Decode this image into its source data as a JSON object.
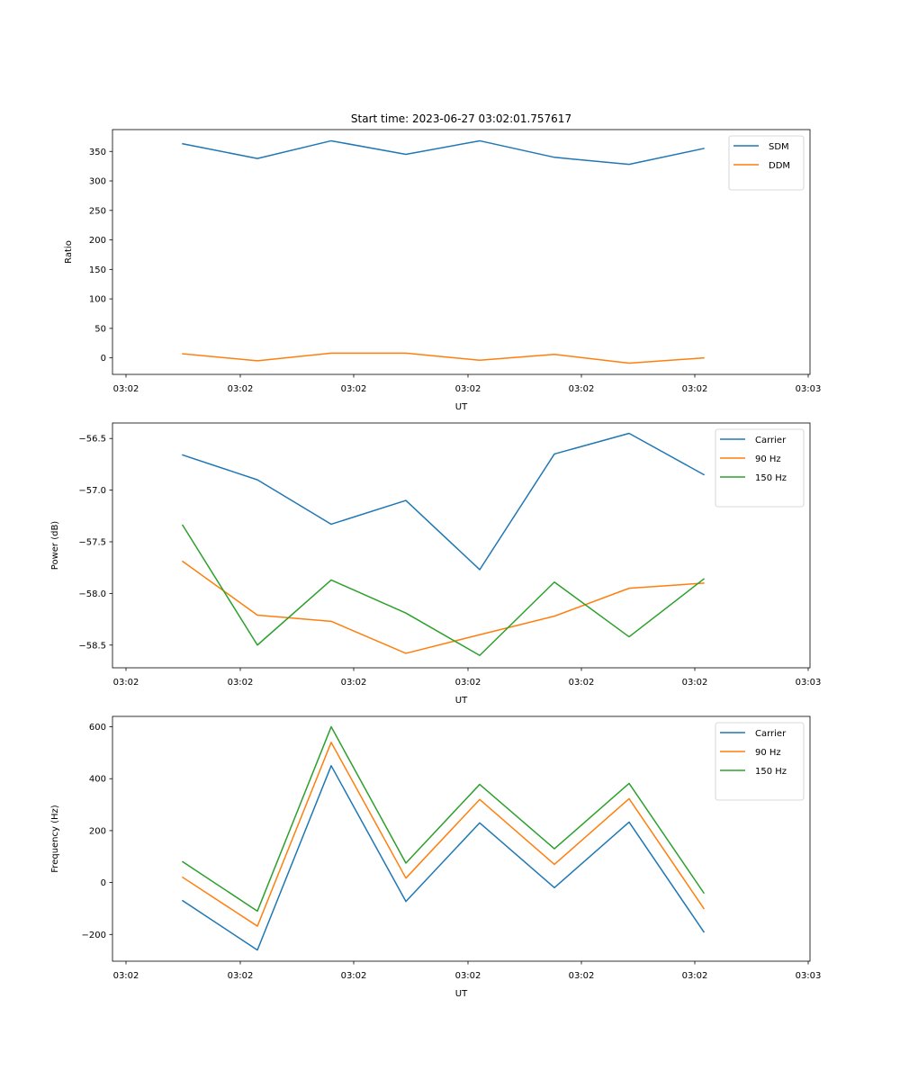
{
  "colors": {
    "blue": "#1f77b4",
    "orange": "#ff7f0e",
    "green": "#2ca02c"
  },
  "chart_data": [
    {
      "type": "line",
      "title": "Start time: 2023-06-27 03:02:01.757617",
      "xlabel": "UT",
      "ylabel": "Ratio",
      "xtick_labels": [
        "03:02",
        "03:02",
        "03:02",
        "03:02",
        "03:02",
        "03:02",
        "03:03"
      ],
      "ylim": [
        -28,
        387
      ],
      "yticks": [
        0,
        50,
        100,
        150,
        200,
        250,
        300,
        350
      ],
      "ytick_labels": [
        "0",
        "50",
        "100",
        "150",
        "200",
        "250",
        "300",
        "350"
      ],
      "grid": false,
      "legend": "top-right",
      "series": [
        {
          "name": "SDM",
          "color": "blue",
          "values": [
            363,
            338,
            368,
            345,
            368,
            340,
            328,
            355
          ]
        },
        {
          "name": "DDM",
          "color": "orange",
          "values": [
            7,
            -5,
            8,
            8,
            -4,
            6,
            -9,
            0
          ]
        }
      ]
    },
    {
      "type": "line",
      "title": "",
      "xlabel": "UT",
      "ylabel": "Power (dB)",
      "xtick_labels": [
        "03:02",
        "03:02",
        "03:02",
        "03:02",
        "03:02",
        "03:02",
        "03:03"
      ],
      "ylim": [
        -58.72,
        -56.35
      ],
      "yticks": [
        -56.5,
        -57.0,
        -57.5,
        -58.0,
        -58.5
      ],
      "ytick_labels": [
        "−56.5",
        "−57.0",
        "−57.5",
        "−58.0",
        "−58.5"
      ],
      "grid": false,
      "legend": "top-right",
      "series": [
        {
          "name": "Carrier",
          "color": "blue",
          "values": [
            -56.66,
            -56.9,
            -57.33,
            -57.1,
            -57.77,
            -56.65,
            -56.45,
            -56.85
          ]
        },
        {
          "name": "90 Hz",
          "color": "orange",
          "values": [
            -57.69,
            -58.21,
            -58.27,
            -58.58,
            -58.4,
            -58.22,
            -57.95,
            -57.9
          ]
        },
        {
          "name": "150 Hz",
          "color": "green",
          "values": [
            -57.34,
            -58.5,
            -57.87,
            -58.19,
            -58.6,
            -57.89,
            -58.42,
            -57.86
          ]
        }
      ]
    },
    {
      "type": "line",
      "title": "",
      "xlabel": "UT",
      "ylabel": "Frequency (Hz)",
      "xtick_labels": [
        "03:02",
        "03:02",
        "03:02",
        "03:02",
        "03:02",
        "03:02",
        "03:03"
      ],
      "ylim": [
        -303,
        640
      ],
      "yticks": [
        600,
        400,
        200,
        0,
        -200
      ],
      "ytick_labels": [
        "600",
        "400",
        "200",
        "0",
        "−200"
      ],
      "grid": false,
      "legend": "top-right",
      "series": [
        {
          "name": "Carrier",
          "color": "blue",
          "values": [
            -70,
            -260,
            450,
            -73,
            230,
            -20,
            233,
            -190
          ]
        },
        {
          "name": "90 Hz",
          "color": "orange",
          "values": [
            20,
            -168,
            540,
            17,
            320,
            70,
            323,
            -100
          ]
        },
        {
          "name": "150 Hz",
          "color": "green",
          "values": [
            80,
            -110,
            600,
            75,
            378,
            130,
            382,
            -40
          ]
        }
      ]
    }
  ]
}
